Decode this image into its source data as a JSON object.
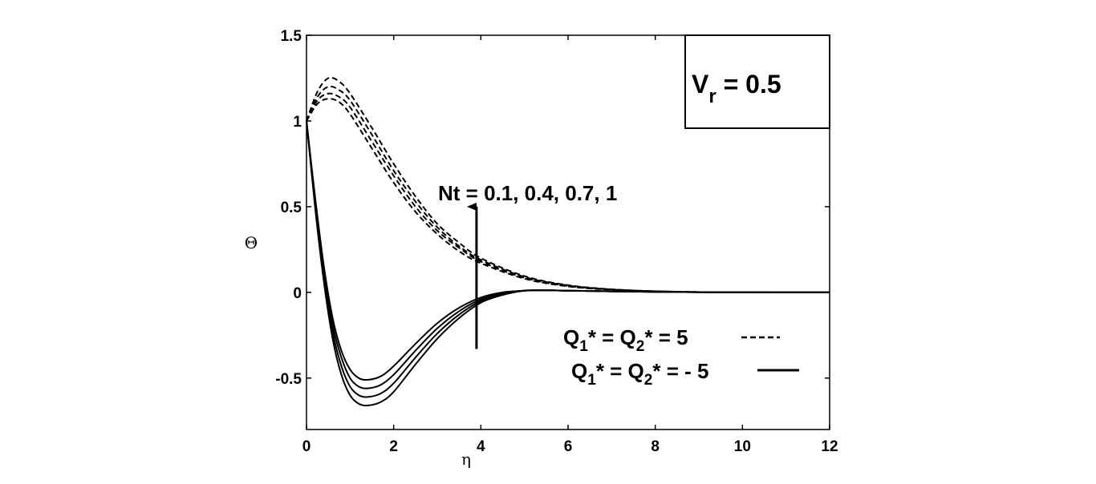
{
  "chart_data": {
    "type": "line",
    "title": "",
    "xlabel": "η",
    "ylabel": "Θ",
    "xlim": [
      0,
      12
    ],
    "ylim": [
      -0.8,
      1.5
    ],
    "xticks": [
      0,
      2,
      4,
      6,
      8,
      10,
      12
    ],
    "xtick_labels": [
      "0",
      "2",
      "4",
      "6",
      "8",
      "10",
      "12"
    ],
    "yticks": [
      -0.5,
      0,
      0.5,
      1,
      1.5
    ],
    "ytick_labels": [
      "-0.5",
      "0",
      "0.5",
      "1",
      "1.5"
    ],
    "grid": false,
    "legend_position": "bottom-right",
    "parameter_box": {
      "main": "V",
      "sub": "r",
      "rest": " = 0.5"
    },
    "arrow_annotation": {
      "text": "Nt = 0.1, 0.4, 0.7, 1",
      "x": 3.9,
      "y_from": -0.33,
      "y_to": 0.5
    },
    "legend": [
      {
        "prefix": "Q",
        "sub1": "1",
        "mid": "* = Q",
        "sub2": "2",
        "suffix": "* = 5",
        "style": "dashed"
      },
      {
        "prefix": "Q",
        "sub1": "1",
        "mid": "* = Q",
        "sub2": "2",
        "suffix": "* = - 5",
        "style": "solid"
      }
    ],
    "series": [
      {
        "group": "Q1* = Q2* = 5",
        "style": "dashed",
        "x": [
          0,
          0.25,
          0.5,
          0.75,
          1,
          1.5,
          2,
          2.5,
          3,
          3.5,
          4,
          5,
          6,
          7,
          8,
          9,
          10,
          11,
          12
        ],
        "y": [
          1,
          1.1,
          1.13,
          1.11,
          1.04,
          0.84,
          0.64,
          0.47,
          0.34,
          0.24,
          0.17,
          0.08,
          0.035,
          0.015,
          0.006,
          0.002,
          0.001,
          0,
          0
        ]
      },
      {
        "group": "Q1* = Q2* = 5",
        "style": "dashed",
        "x": [
          0,
          0.25,
          0.5,
          0.75,
          1,
          1.5,
          2,
          2.5,
          3,
          3.5,
          4,
          5,
          6,
          7,
          8,
          9,
          10,
          11,
          12
        ],
        "y": [
          1,
          1.12,
          1.16,
          1.14,
          1.08,
          0.88,
          0.68,
          0.5,
          0.36,
          0.26,
          0.18,
          0.085,
          0.037,
          0.016,
          0.006,
          0.002,
          0.001,
          0,
          0
        ]
      },
      {
        "group": "Q1* = Q2* = 5",
        "style": "dashed",
        "x": [
          0,
          0.25,
          0.5,
          0.75,
          1,
          1.5,
          2,
          2.5,
          3,
          3.5,
          4,
          5,
          6,
          7,
          8,
          9,
          10,
          11,
          12
        ],
        "y": [
          1,
          1.14,
          1.2,
          1.18,
          1.12,
          0.92,
          0.71,
          0.53,
          0.38,
          0.27,
          0.19,
          0.09,
          0.04,
          0.017,
          0.007,
          0.002,
          0.001,
          0,
          0
        ]
      },
      {
        "group": "Q1* = Q2* = 5",
        "style": "dashed",
        "x": [
          0,
          0.25,
          0.5,
          0.75,
          1,
          1.5,
          2,
          2.5,
          3,
          3.5,
          4,
          5,
          6,
          7,
          8,
          9,
          10,
          11,
          12
        ],
        "y": [
          1,
          1.17,
          1.25,
          1.23,
          1.16,
          0.96,
          0.75,
          0.56,
          0.4,
          0.29,
          0.2,
          0.095,
          0.042,
          0.018,
          0.007,
          0.002,
          0.001,
          0,
          0
        ]
      },
      {
        "group": "Q1* = Q2* = -5",
        "style": "solid",
        "x": [
          0,
          0.2,
          0.4,
          0.6,
          0.8,
          1,
          1.2,
          1.4,
          1.7,
          2,
          2.5,
          3,
          3.5,
          4,
          4.5,
          5,
          5.5,
          6,
          7,
          8,
          9,
          10,
          11,
          12
        ],
        "y": [
          1,
          0.55,
          0.15,
          -0.15,
          -0.34,
          -0.45,
          -0.5,
          -0.51,
          -0.49,
          -0.43,
          -0.3,
          -0.18,
          -0.09,
          -0.03,
          0,
          0.01,
          0.012,
          0.01,
          0.006,
          0.003,
          0.001,
          0,
          0,
          0
        ]
      },
      {
        "group": "Q1* = Q2* = -5",
        "style": "solid",
        "x": [
          0,
          0.2,
          0.4,
          0.6,
          0.8,
          1,
          1.2,
          1.4,
          1.7,
          2,
          2.5,
          3,
          3.5,
          4,
          4.5,
          5,
          5.5,
          6,
          7,
          8,
          9,
          10,
          11,
          12
        ],
        "y": [
          1,
          0.53,
          0.12,
          -0.19,
          -0.38,
          -0.5,
          -0.55,
          -0.56,
          -0.54,
          -0.48,
          -0.34,
          -0.21,
          -0.11,
          -0.04,
          -0.005,
          0.01,
          0.012,
          0.01,
          0.006,
          0.003,
          0.001,
          0,
          0,
          0
        ]
      },
      {
        "group": "Q1* = Q2* = -5",
        "style": "solid",
        "x": [
          0,
          0.2,
          0.4,
          0.6,
          0.8,
          1,
          1.2,
          1.4,
          1.7,
          2,
          2.5,
          3,
          3.5,
          4,
          4.5,
          5,
          5.5,
          6,
          7,
          8,
          9,
          10,
          11,
          12
        ],
        "y": [
          1,
          0.51,
          0.09,
          -0.23,
          -0.43,
          -0.55,
          -0.6,
          -0.61,
          -0.59,
          -0.53,
          -0.38,
          -0.24,
          -0.13,
          -0.05,
          -0.01,
          0.01,
          0.012,
          0.01,
          0.006,
          0.003,
          0.001,
          0,
          0,
          0
        ]
      },
      {
        "group": "Q1* = Q2* = -5",
        "style": "solid",
        "x": [
          0,
          0.2,
          0.4,
          0.6,
          0.8,
          1,
          1.2,
          1.4,
          1.7,
          2,
          2.5,
          3,
          3.5,
          4,
          4.5,
          5,
          5.5,
          6,
          7,
          8,
          9,
          10,
          11,
          12
        ],
        "y": [
          1,
          0.49,
          0.06,
          -0.27,
          -0.48,
          -0.6,
          -0.65,
          -0.66,
          -0.64,
          -0.58,
          -0.42,
          -0.27,
          -0.15,
          -0.06,
          -0.015,
          0.01,
          0.012,
          0.01,
          0.006,
          0.003,
          0.001,
          0,
          0,
          0
        ]
      }
    ]
  }
}
